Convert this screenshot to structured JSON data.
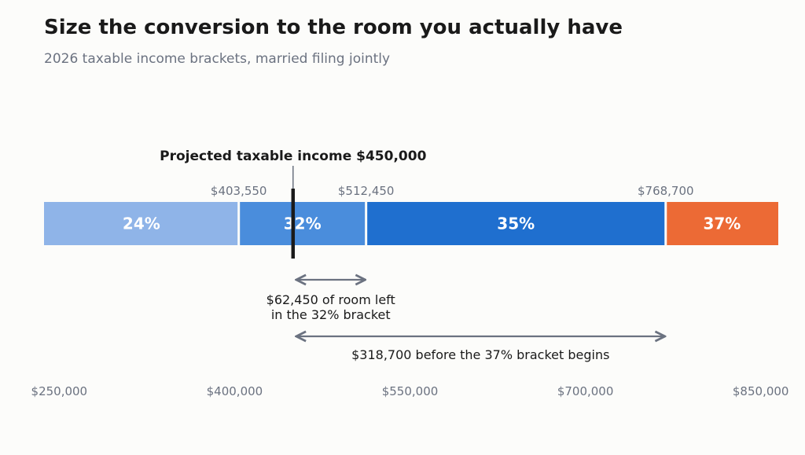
{
  "chart_data": {
    "type": "bar",
    "orientation": "horizontal-stacked-ranges",
    "title": "Size the conversion to the room you actually have",
    "subtitle": "2026 taxable income brackets, married filing jointly",
    "xlim": [
      237000,
      865000
    ],
    "ticks": [
      250000,
      400000,
      550000,
      700000,
      850000
    ],
    "tick_labels": [
      "$250,000",
      "$400,000",
      "$550,000",
      "$700,000",
      "$850,000"
    ],
    "brackets": [
      {
        "label": "24%",
        "start": 237000,
        "end": 403550,
        "color": "#8fb4e8"
      },
      {
        "label": "32%",
        "start": 403550,
        "end": 512450,
        "color": "#4a8ddc"
      },
      {
        "label": "35%",
        "start": 512450,
        "end": 768700,
        "color": "#1f6fcf"
      },
      {
        "label": "37%",
        "start": 768700,
        "end": 865000,
        "color": "#ec6a35"
      }
    ],
    "boundary_labels": [
      {
        "value": 403550,
        "text": "$403,550"
      },
      {
        "value": 512450,
        "text": "$512,450"
      },
      {
        "value": 768700,
        "text": "$768,700"
      }
    ],
    "marker": {
      "value": 450000,
      "label": "Projected taxable income $450,000"
    },
    "annotations": [
      {
        "from": 450000,
        "to": 512450,
        "lines": [
          "$62,450 of room left",
          "in the 32% bracket"
        ]
      },
      {
        "from": 450000,
        "to": 768700,
        "lines": [
          "$318,700 before the 37% bracket begins"
        ]
      }
    ]
  }
}
